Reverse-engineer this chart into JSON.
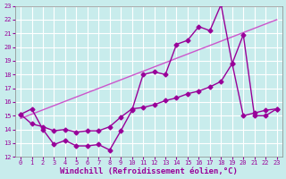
{
  "xlabel": "Windchill (Refroidissement éolien,°C)",
  "bg_color": "#c8ecec",
  "grid_color": "#ffffff",
  "line_color1": "#990099",
  "line_color2": "#cc55cc",
  "line_color3": "#990099",
  "xlim": [
    -0.5,
    23.5
  ],
  "ylim": [
    12,
    23
  ],
  "xticks": [
    0,
    1,
    2,
    3,
    4,
    5,
    6,
    7,
    8,
    9,
    10,
    11,
    12,
    13,
    14,
    15,
    16,
    17,
    18,
    19,
    20,
    21,
    22,
    23
  ],
  "yticks": [
    12,
    13,
    14,
    15,
    16,
    17,
    18,
    19,
    20,
    21,
    22,
    23
  ],
  "line1_x": [
    0,
    1,
    2,
    3,
    4,
    5,
    6,
    7,
    8,
    9,
    10,
    11,
    12,
    13,
    14,
    15,
    16,
    17,
    18,
    19,
    20,
    21,
    22,
    23
  ],
  "line1_y": [
    15.1,
    15.5,
    14.0,
    12.9,
    13.2,
    12.8,
    12.8,
    12.9,
    12.5,
    13.9,
    15.4,
    18.0,
    18.2,
    18.0,
    20.2,
    20.5,
    21.5,
    21.2,
    23.1,
    18.8,
    20.9,
    15.0,
    15.0,
    15.5
  ],
  "line2_x": [
    0,
    23
  ],
  "line2_y": [
    14.8,
    22.0
  ],
  "line3_x": [
    0,
    1,
    2,
    3,
    4,
    5,
    6,
    7,
    8,
    9,
    10,
    11,
    12,
    13,
    14,
    15,
    16,
    17,
    18,
    19,
    20,
    21,
    22,
    23
  ],
  "line3_y": [
    15.1,
    14.4,
    14.2,
    13.9,
    14.0,
    13.8,
    13.9,
    13.9,
    14.2,
    14.9,
    15.5,
    15.6,
    15.8,
    16.1,
    16.3,
    16.6,
    16.8,
    17.1,
    17.5,
    18.8,
    15.0,
    15.2,
    15.4,
    15.5
  ],
  "marker": "D",
  "markersize": 2.5,
  "linewidth": 1.0,
  "tick_fontsize": 5.0,
  "label_fontsize": 6.5
}
